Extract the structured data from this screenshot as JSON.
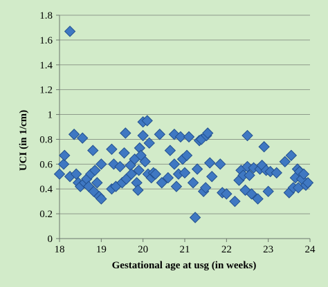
{
  "chart_data": {
    "type": "scatter",
    "title": "",
    "xlabel": "Gestational age at usg (in weeks)",
    "ylabel": "UCI (in 1/cm)",
    "xlim": [
      18,
      24
    ],
    "ylim": [
      0,
      1.8
    ],
    "xticks": [
      18,
      19,
      20,
      21,
      22,
      23,
      24
    ],
    "yticks": [
      0,
      0.2,
      0.4,
      0.6,
      0.8,
      1,
      1.2,
      1.4,
      1.6,
      1.8
    ],
    "grid": "horizontal major gridlines",
    "legend": "none",
    "colors": {
      "background": "#d2ebc9",
      "plot_area": "#d2ebc9",
      "gridline": "#8e9a8a",
      "marker_fill": "#3f78c2",
      "marker_edge": "#22508f"
    },
    "marker": "diamond",
    "points": [
      [
        18.0,
        0.52
      ],
      [
        18.1,
        0.6
      ],
      [
        18.12,
        0.67
      ],
      [
        18.25,
        1.67
      ],
      [
        18.25,
        0.5
      ],
      [
        18.35,
        0.84
      ],
      [
        18.4,
        0.52
      ],
      [
        18.45,
        0.45
      ],
      [
        18.5,
        0.42
      ],
      [
        18.55,
        0.81
      ],
      [
        18.6,
        0.45
      ],
      [
        18.65,
        0.48
      ],
      [
        18.7,
        0.42
      ],
      [
        18.75,
        0.52
      ],
      [
        18.8,
        0.71
      ],
      [
        18.82,
        0.38
      ],
      [
        18.85,
        0.55
      ],
      [
        18.9,
        0.45
      ],
      [
        18.95,
        0.34
      ],
      [
        19.0,
        0.32
      ],
      [
        19.0,
        0.6
      ],
      [
        19.25,
        0.4
      ],
      [
        19.25,
        0.72
      ],
      [
        19.3,
        0.6
      ],
      [
        19.35,
        0.42
      ],
      [
        19.45,
        0.58
      ],
      [
        19.5,
        0.45
      ],
      [
        19.55,
        0.69
      ],
      [
        19.58,
        0.85
      ],
      [
        19.6,
        0.48
      ],
      [
        19.7,
        0.59
      ],
      [
        19.72,
        0.52
      ],
      [
        19.8,
        0.64
      ],
      [
        19.85,
        0.45
      ],
      [
        19.88,
        0.39
      ],
      [
        19.9,
        0.55
      ],
      [
        19.92,
        0.73
      ],
      [
        19.95,
        0.67
      ],
      [
        20.0,
        0.94
      ],
      [
        20.0,
        0.83
      ],
      [
        20.05,
        0.62
      ],
      [
        20.1,
        0.95
      ],
      [
        20.12,
        0.52
      ],
      [
        20.15,
        0.77
      ],
      [
        20.2,
        0.49
      ],
      [
        20.25,
        0.53
      ],
      [
        20.3,
        0.52
      ],
      [
        20.4,
        0.84
      ],
      [
        20.45,
        0.45
      ],
      [
        20.6,
        0.49
      ],
      [
        20.65,
        0.71
      ],
      [
        20.75,
        0.84
      ],
      [
        20.75,
        0.6
      ],
      [
        20.8,
        0.42
      ],
      [
        20.85,
        0.52
      ],
      [
        20.9,
        0.82
      ],
      [
        20.95,
        0.64
      ],
      [
        21.0,
        0.53
      ],
      [
        21.05,
        0.67
      ],
      [
        21.1,
        0.82
      ],
      [
        21.2,
        0.45
      ],
      [
        21.25,
        0.17
      ],
      [
        21.3,
        0.56
      ],
      [
        21.35,
        0.79
      ],
      [
        21.4,
        0.8
      ],
      [
        21.45,
        0.38
      ],
      [
        21.5,
        0.41
      ],
      [
        21.52,
        0.83
      ],
      [
        21.55,
        0.85
      ],
      [
        21.6,
        0.61
      ],
      [
        21.65,
        0.5
      ],
      [
        21.85,
        0.6
      ],
      [
        21.9,
        0.37
      ],
      [
        22.0,
        0.36
      ],
      [
        22.2,
        0.3
      ],
      [
        22.3,
        0.47
      ],
      [
        22.35,
        0.55
      ],
      [
        22.4,
        0.51
      ],
      [
        22.45,
        0.39
      ],
      [
        22.5,
        0.58
      ],
      [
        22.5,
        0.83
      ],
      [
        22.55,
        0.51
      ],
      [
        22.6,
        0.36
      ],
      [
        22.65,
        0.57
      ],
      [
        22.75,
        0.32
      ],
      [
        22.8,
        0.56
      ],
      [
        22.85,
        0.59
      ],
      [
        22.9,
        0.74
      ],
      [
        22.95,
        0.55
      ],
      [
        23.0,
        0.38
      ],
      [
        23.05,
        0.54
      ],
      [
        23.2,
        0.53
      ],
      [
        23.4,
        0.62
      ],
      [
        23.5,
        0.37
      ],
      [
        23.55,
        0.67
      ],
      [
        23.6,
        0.41
      ],
      [
        23.65,
        0.49
      ],
      [
        23.7,
        0.56
      ],
      [
        23.72,
        0.41
      ],
      [
        23.75,
        0.54
      ],
      [
        23.8,
        0.48
      ],
      [
        23.85,
        0.52
      ],
      [
        23.9,
        0.43
      ],
      [
        23.95,
        0.45
      ]
    ]
  }
}
